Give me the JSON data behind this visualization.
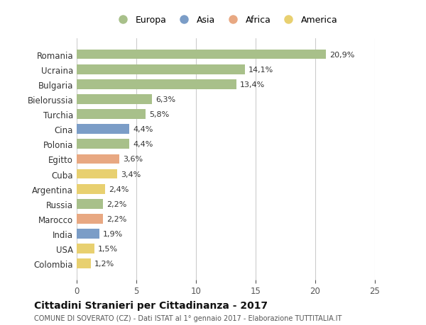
{
  "countries": [
    "Romania",
    "Ucraina",
    "Bulgaria",
    "Bielorussia",
    "Turchia",
    "Cina",
    "Polonia",
    "Egitto",
    "Cuba",
    "Argentina",
    "Russia",
    "Marocco",
    "India",
    "USA",
    "Colombia"
  ],
  "values": [
    20.9,
    14.1,
    13.4,
    6.3,
    5.8,
    4.4,
    4.4,
    3.6,
    3.4,
    2.4,
    2.2,
    2.2,
    1.9,
    1.5,
    1.2
  ],
  "labels": [
    "20,9%",
    "14,1%",
    "13,4%",
    "6,3%",
    "5,8%",
    "4,4%",
    "4,4%",
    "3,6%",
    "3,4%",
    "2,4%",
    "2,2%",
    "2,2%",
    "1,9%",
    "1,5%",
    "1,2%"
  ],
  "continents": [
    "Europa",
    "Europa",
    "Europa",
    "Europa",
    "Europa",
    "Asia",
    "Europa",
    "Africa",
    "America",
    "America",
    "Europa",
    "Africa",
    "Asia",
    "America",
    "America"
  ],
  "continent_colors": {
    "Europa": "#a8c08a",
    "Asia": "#7b9dc7",
    "Africa": "#e8a882",
    "America": "#e8d070"
  },
  "legend_order": [
    "Europa",
    "Asia",
    "Africa",
    "America"
  ],
  "xlim": [
    0,
    25
  ],
  "xticks": [
    0,
    5,
    10,
    15,
    20,
    25
  ],
  "title": "Cittadini Stranieri per Cittadinanza - 2017",
  "subtitle": "COMUNE DI SOVERATO (CZ) - Dati ISTAT al 1° gennaio 2017 - Elaborazione TUTTITALIA.IT",
  "bg_color": "#ffffff",
  "grid_color": "#cccccc",
  "bar_height": 0.65
}
